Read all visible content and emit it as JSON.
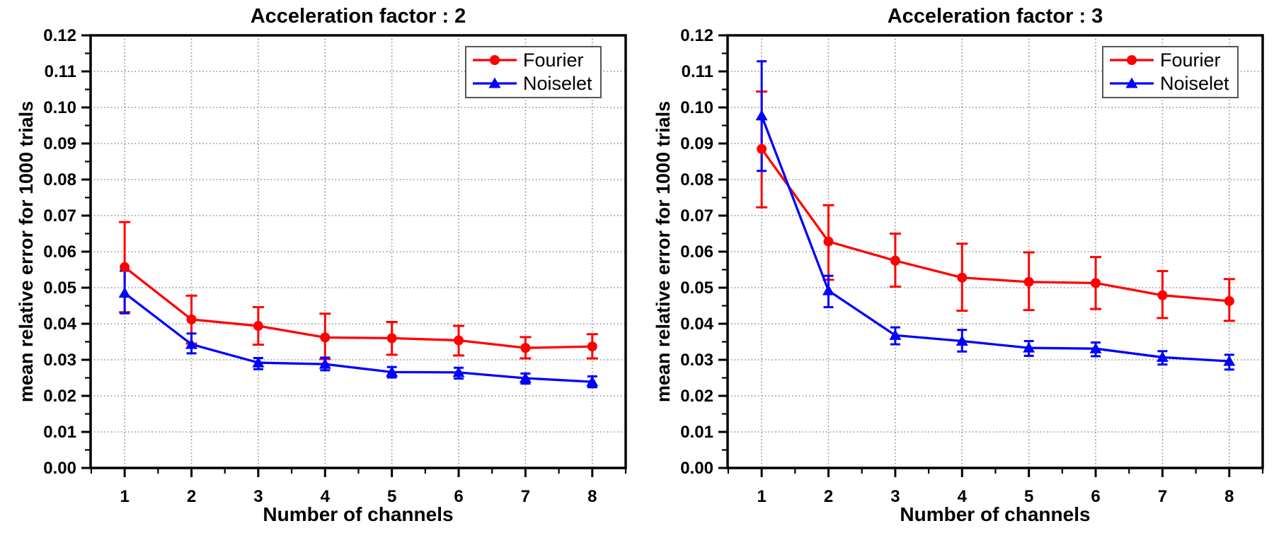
{
  "page": {
    "background": "#ffffff",
    "text_color": "#000000",
    "grid_color": "#8f8f8f",
    "axis_color": "#000000",
    "legend_border_color": "#555555"
  },
  "chart_data": [
    {
      "type": "line",
      "title": "Acceleration factor : 2",
      "xlabel": "Number of channels",
      "ylabel": "mean relative error for 1000 trials",
      "x": [
        1,
        2,
        3,
        4,
        5,
        6,
        7,
        8
      ],
      "xlim": [
        0.49,
        8.5
      ],
      "ylim": [
        0.0,
        0.12
      ],
      "x_tick_labels": [
        "1",
        "2",
        "3",
        "4",
        "5",
        "6",
        "7",
        "8"
      ],
      "y_tick_labels": [
        "0.00",
        "0.01",
        "0.02",
        "0.03",
        "0.04",
        "0.05",
        "0.06",
        "0.07",
        "0.08",
        "0.09",
        "0.10",
        "0.11",
        "0.12"
      ],
      "y_major_step": 0.01,
      "grid": true,
      "legend_position": "top-right",
      "series": [
        {
          "name": "Fourier",
          "color": "#ff0000",
          "marker": "circle",
          "values": [
            0.0557,
            0.0412,
            0.0394,
            0.0362,
            0.036,
            0.0354,
            0.0333,
            0.0337
          ],
          "err_hi": [
            0.0682,
            0.0478,
            0.0446,
            0.0428,
            0.0405,
            0.0394,
            0.0363,
            0.0371
          ],
          "err_lo": [
            0.0432,
            0.0345,
            0.0342,
            0.0302,
            0.0314,
            0.0312,
            0.0304,
            0.0304
          ]
        },
        {
          "name": "Noiselet",
          "color": "#0000ff",
          "marker": "triangle",
          "values": [
            0.0485,
            0.0343,
            0.0292,
            0.0288,
            0.0266,
            0.0265,
            0.0249,
            0.0239
          ],
          "err_hi": [
            0.0547,
            0.0373,
            0.0305,
            0.0306,
            0.028,
            0.0278,
            0.0262,
            0.0254
          ],
          "err_lo": [
            0.0429,
            0.0318,
            0.0274,
            0.0271,
            0.0251,
            0.0248,
            0.0234,
            0.0224
          ]
        }
      ]
    },
    {
      "type": "line",
      "title": "Acceleration factor : 3",
      "xlabel": "Number of channels",
      "ylabel": "mean relative error for 1000 trials",
      "x": [
        1,
        2,
        3,
        4,
        5,
        6,
        7,
        8
      ],
      "xlim": [
        0.49,
        8.5
      ],
      "ylim": [
        0.0,
        0.12
      ],
      "x_tick_labels": [
        "1",
        "2",
        "3",
        "4",
        "5",
        "6",
        "7",
        "8"
      ],
      "y_tick_labels": [
        "0.00",
        "0.01",
        "0.02",
        "0.03",
        "0.04",
        "0.05",
        "0.06",
        "0.07",
        "0.08",
        "0.09",
        "0.10",
        "0.11",
        "0.12"
      ],
      "y_major_step": 0.01,
      "grid": true,
      "legend_position": "top-right",
      "series": [
        {
          "name": "Fourier",
          "color": "#ff0000",
          "marker": "circle",
          "values": [
            0.0885,
            0.0628,
            0.0575,
            0.0528,
            0.0516,
            0.0513,
            0.0479,
            0.0463
          ],
          "err_hi": [
            0.1044,
            0.0729,
            0.065,
            0.0622,
            0.0598,
            0.0585,
            0.0546,
            0.0524
          ],
          "err_lo": [
            0.0723,
            0.0522,
            0.0503,
            0.0436,
            0.0438,
            0.0441,
            0.0416,
            0.0408
          ]
        },
        {
          "name": "Noiselet",
          "color": "#0000ff",
          "marker": "triangle",
          "values": [
            0.0977,
            0.0492,
            0.0368,
            0.0352,
            0.0333,
            0.0331,
            0.0307,
            0.0296
          ],
          "err_hi": [
            0.1128,
            0.0533,
            0.039,
            0.0383,
            0.0352,
            0.0348,
            0.0324,
            0.0314
          ],
          "err_lo": [
            0.0824,
            0.0446,
            0.0343,
            0.0323,
            0.0311,
            0.031,
            0.0287,
            0.0273
          ]
        }
      ]
    }
  ]
}
